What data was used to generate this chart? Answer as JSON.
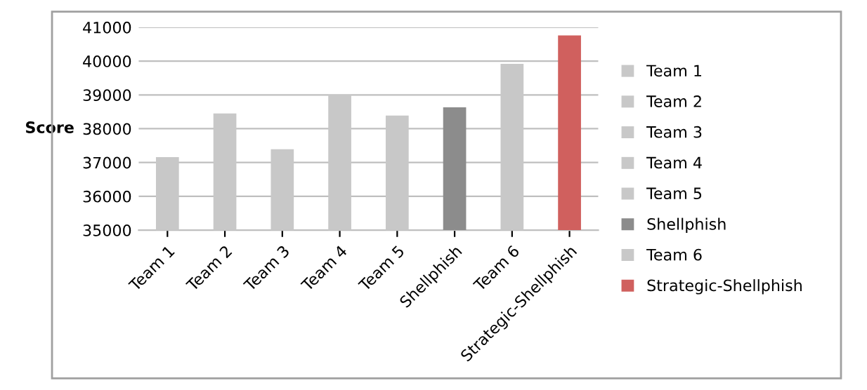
{
  "chart_data": {
    "type": "bar",
    "ylabel": "Score",
    "categories": [
      "Team 1",
      "Team 2",
      "Team 3",
      "Team 4",
      "Team 5",
      "Shellphish",
      "Team 6",
      "Strategic-Shellphish"
    ],
    "series": [
      {
        "name": "Team 1",
        "color": "#c8c8c8",
        "values": [
          37160,
          null,
          null,
          null,
          null,
          null,
          null,
          null
        ]
      },
      {
        "name": "Team 2",
        "color": "#c8c8c8",
        "values": [
          null,
          38450,
          null,
          null,
          null,
          null,
          null,
          null
        ]
      },
      {
        "name": "Team 3",
        "color": "#c8c8c8",
        "values": [
          null,
          null,
          37390,
          null,
          null,
          null,
          null,
          null
        ]
      },
      {
        "name": "Team 4",
        "color": "#c8c8c8",
        "values": [
          null,
          null,
          null,
          39000,
          null,
          null,
          null,
          null
        ]
      },
      {
        "name": "Team 5",
        "color": "#c8c8c8",
        "values": [
          null,
          null,
          null,
          null,
          38390,
          null,
          null,
          null
        ]
      },
      {
        "name": "Shellphish",
        "color": "#8c8c8c",
        "values": [
          null,
          null,
          null,
          null,
          null,
          38630,
          null,
          null
        ]
      },
      {
        "name": "Team 6",
        "color": "#c8c8c8",
        "values": [
          null,
          null,
          null,
          null,
          null,
          null,
          39920,
          null
        ]
      },
      {
        "name": "Strategic-Shellphish",
        "color": "#d0605e",
        "values": [
          null,
          null,
          null,
          null,
          null,
          null,
          null,
          40760
        ]
      }
    ],
    "ylim": [
      35000,
      41000
    ],
    "yticks": [
      35000,
      36000,
      37000,
      38000,
      39000,
      40000,
      41000
    ],
    "grid": "y",
    "legend": "right"
  }
}
